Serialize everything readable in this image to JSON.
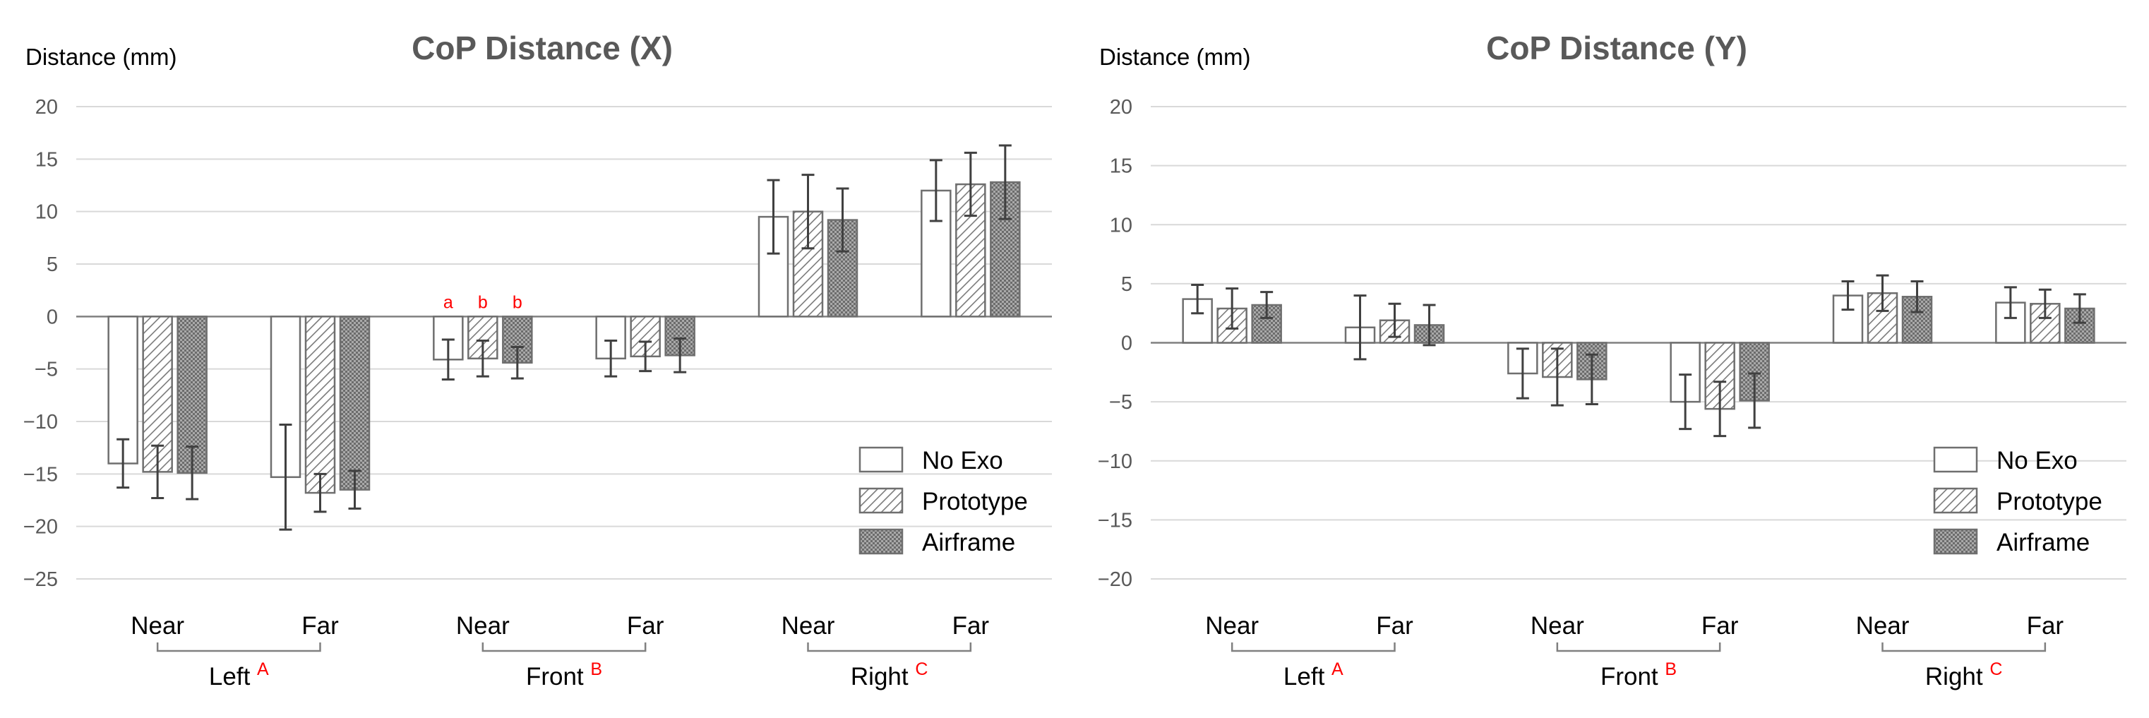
{
  "chart_data": [
    {
      "type": "bar",
      "title": "CoP Distance (X)",
      "ylabel": "Distance (mm)",
      "xlabel": "",
      "ylim": [
        -25,
        20
      ],
      "yticks": [
        20,
        15,
        10,
        5,
        0,
        -5,
        -10,
        -15,
        -20,
        -25
      ],
      "categories": [
        "Near",
        "Far",
        "Near",
        "Far",
        "Near",
        "Far"
      ],
      "groups": [
        {
          "label": "Left",
          "letter": "A"
        },
        {
          "label": "Front",
          "letter": "B"
        },
        {
          "label": "Right",
          "letter": "C"
        }
      ],
      "series": [
        {
          "name": "No Exo",
          "pattern": "none",
          "values": [
            -14.0,
            -15.3,
            -4.1,
            -4.0,
            9.5,
            12.0
          ],
          "errors": [
            2.3,
            5.0,
            1.9,
            1.7,
            3.5,
            2.9
          ]
        },
        {
          "name": "Prototype",
          "pattern": "hatch",
          "values": [
            -14.8,
            -16.8,
            -4.0,
            -3.8,
            10.0,
            12.6
          ],
          "errors": [
            2.5,
            1.8,
            1.7,
            1.4,
            3.5,
            3.0
          ]
        },
        {
          "name": "Airframe",
          "pattern": "dots",
          "values": [
            -14.9,
            -16.5,
            -4.4,
            -3.7,
            9.2,
            12.8
          ],
          "errors": [
            2.5,
            1.8,
            1.5,
            1.6,
            3.0,
            3.5
          ]
        }
      ],
      "annotations": [
        {
          "category_index": 2,
          "series_index": 0,
          "text": "a"
        },
        {
          "category_index": 2,
          "series_index": 1,
          "text": "b"
        },
        {
          "category_index": 2,
          "series_index": 2,
          "text": "b"
        }
      ],
      "legend": "lower-right"
    },
    {
      "type": "bar",
      "title": "CoP Distance (Y)",
      "ylabel": "Distance (mm)",
      "xlabel": "",
      "ylim": [
        -20,
        20
      ],
      "yticks": [
        20,
        15,
        10,
        5,
        0,
        -5,
        -10,
        -15,
        -20
      ],
      "categories": [
        "Near",
        "Far",
        "Near",
        "Far",
        "Near",
        "Far"
      ],
      "groups": [
        {
          "label": "Left",
          "letter": "A"
        },
        {
          "label": "Front",
          "letter": "B"
        },
        {
          "label": "Right",
          "letter": "C"
        }
      ],
      "series": [
        {
          "name": "No Exo",
          "pattern": "none",
          "values": [
            3.7,
            1.3,
            -2.6,
            -5.0,
            4.0,
            3.4
          ],
          "errors": [
            1.2,
            2.7,
            2.1,
            2.3,
            1.2,
            1.3
          ]
        },
        {
          "name": "Prototype",
          "pattern": "hatch",
          "values": [
            2.9,
            1.9,
            -2.9,
            -5.6,
            4.2,
            3.3
          ],
          "errors": [
            1.7,
            1.4,
            2.4,
            2.3,
            1.5,
            1.2
          ]
        },
        {
          "name": "Airframe",
          "pattern": "dots",
          "values": [
            3.2,
            1.5,
            -3.1,
            -4.9,
            3.9,
            2.9
          ],
          "errors": [
            1.1,
            1.7,
            2.1,
            2.3,
            1.3,
            1.2
          ]
        }
      ],
      "annotations": [],
      "legend": "lower-right"
    }
  ]
}
